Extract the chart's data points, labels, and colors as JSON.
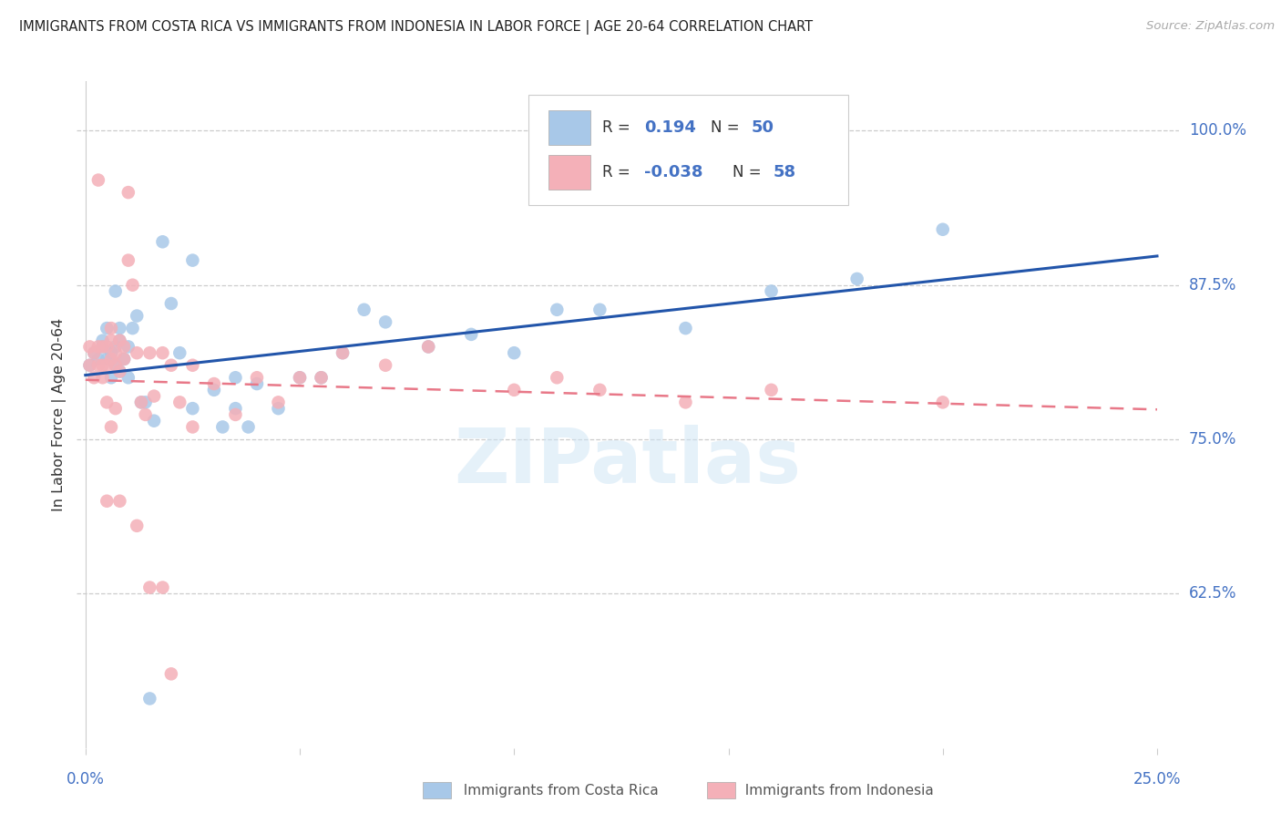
{
  "title": "IMMIGRANTS FROM COSTA RICA VS IMMIGRANTS FROM INDONESIA IN LABOR FORCE | AGE 20-64 CORRELATION CHART",
  "source": "Source: ZipAtlas.com",
  "ylabel": "In Labor Force | Age 20-64",
  "yticks": [
    0.625,
    0.75,
    0.875,
    1.0
  ],
  "ytick_labels": [
    "62.5%",
    "75.0%",
    "87.5%",
    "100.0%"
  ],
  "xlim": [
    -0.002,
    0.255
  ],
  "ylim": [
    0.5,
    1.04
  ],
  "blue_color": "#a8c8e8",
  "pink_color": "#f4b0b8",
  "line_blue": "#2255aa",
  "line_pink": "#e87888",
  "watermark": "ZIPatlas",
  "blue_scatter_x": [
    0.001,
    0.002,
    0.003,
    0.004,
    0.004,
    0.005,
    0.005,
    0.006,
    0.006,
    0.007,
    0.007,
    0.007,
    0.008,
    0.008,
    0.008,
    0.009,
    0.01,
    0.01,
    0.011,
    0.012,
    0.013,
    0.014,
    0.016,
    0.018,
    0.02,
    0.022,
    0.025,
    0.03,
    0.032,
    0.035,
    0.038,
    0.04,
    0.045,
    0.05,
    0.055,
    0.06,
    0.065,
    0.07,
    0.08,
    0.09,
    0.1,
    0.11,
    0.12,
    0.14,
    0.16,
    0.18,
    0.2,
    0.035,
    0.025,
    0.015
  ],
  "blue_scatter_y": [
    0.81,
    0.82,
    0.815,
    0.825,
    0.83,
    0.815,
    0.84,
    0.8,
    0.82,
    0.81,
    0.87,
    0.825,
    0.805,
    0.83,
    0.84,
    0.815,
    0.8,
    0.825,
    0.84,
    0.85,
    0.78,
    0.78,
    0.765,
    0.91,
    0.86,
    0.82,
    0.895,
    0.79,
    0.76,
    0.8,
    0.76,
    0.795,
    0.775,
    0.8,
    0.8,
    0.82,
    0.855,
    0.845,
    0.825,
    0.835,
    0.82,
    0.855,
    0.855,
    0.84,
    0.87,
    0.88,
    0.92,
    0.775,
    0.775,
    0.54
  ],
  "pink_scatter_x": [
    0.001,
    0.001,
    0.002,
    0.002,
    0.003,
    0.003,
    0.004,
    0.004,
    0.005,
    0.005,
    0.006,
    0.006,
    0.006,
    0.007,
    0.007,
    0.008,
    0.008,
    0.009,
    0.009,
    0.01,
    0.01,
    0.011,
    0.012,
    0.013,
    0.014,
    0.015,
    0.016,
    0.018,
    0.02,
    0.022,
    0.025,
    0.03,
    0.035,
    0.04,
    0.045,
    0.05,
    0.055,
    0.06,
    0.07,
    0.08,
    0.1,
    0.11,
    0.12,
    0.14,
    0.16,
    0.2,
    0.005,
    0.008,
    0.012,
    0.015,
    0.018,
    0.02,
    0.025,
    0.003,
    0.004,
    0.005,
    0.006,
    0.007
  ],
  "pink_scatter_y": [
    0.81,
    0.825,
    0.82,
    0.8,
    0.825,
    0.81,
    0.825,
    0.81,
    0.81,
    0.825,
    0.83,
    0.815,
    0.84,
    0.82,
    0.81,
    0.83,
    0.805,
    0.815,
    0.825,
    0.95,
    0.895,
    0.875,
    0.82,
    0.78,
    0.77,
    0.82,
    0.785,
    0.82,
    0.81,
    0.78,
    0.76,
    0.795,
    0.77,
    0.8,
    0.78,
    0.8,
    0.8,
    0.82,
    0.81,
    0.825,
    0.79,
    0.8,
    0.79,
    0.78,
    0.79,
    0.78,
    0.7,
    0.7,
    0.68,
    0.63,
    0.63,
    0.56,
    0.81,
    0.96,
    0.8,
    0.78,
    0.76,
    0.775
  ],
  "grid_color": "#cccccc",
  "tick_color": "#4472c4",
  "text_color": "#333333",
  "legend_box_color": "#dddddd",
  "legend_blue_rect": "#a8c8e8",
  "legend_pink_rect": "#f4b0b8"
}
